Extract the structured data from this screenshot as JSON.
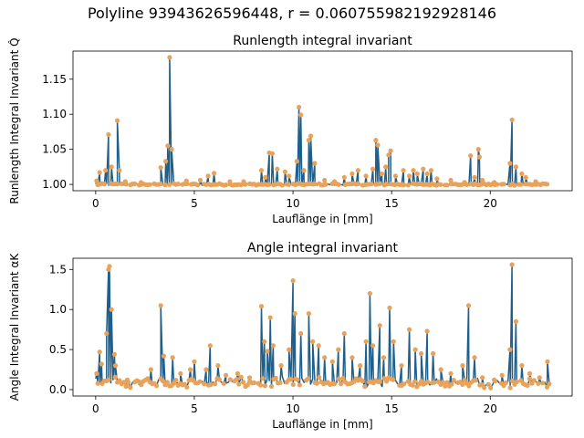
{
  "figure": {
    "suptitle": "Polyline 93943626596448, r = 0.060755982192928146"
  },
  "chart_data": [
    {
      "type": "line",
      "title": "Runlength integral invariant",
      "xlabel": "Lauflänge in [mm]",
      "ylabel": "Runlength Integral Invariant Q̂",
      "xlim": [
        -1.15,
        24.15
      ],
      "ylim": [
        0.991,
        1.19
      ],
      "xticks": [
        0,
        5,
        10,
        15,
        20
      ],
      "yticks": [
        1.0,
        1.05,
        1.1,
        1.15
      ],
      "ytick_labels": [
        "1.00",
        "1.05",
        "1.10",
        "1.15"
      ],
      "line_color": "#1f5f8b",
      "marker_color": "#e8a25a",
      "baseline": 1.0,
      "x_end": 23.0,
      "peaks": [
        {
          "x": 0.05,
          "y": 1.005
        },
        {
          "x": 0.2,
          "y": 1.017
        },
        {
          "x": 0.5,
          "y": 1.02
        },
        {
          "x": 0.65,
          "y": 1.071
        },
        {
          "x": 0.8,
          "y": 1.025
        },
        {
          "x": 1.1,
          "y": 1.091
        },
        {
          "x": 1.2,
          "y": 1.02
        },
        {
          "x": 1.5,
          "y": 1.004
        },
        {
          "x": 2.3,
          "y": 1.003
        },
        {
          "x": 3.3,
          "y": 1.024
        },
        {
          "x": 3.55,
          "y": 1.033
        },
        {
          "x": 3.65,
          "y": 1.055
        },
        {
          "x": 3.75,
          "y": 1.181
        },
        {
          "x": 3.85,
          "y": 1.05
        },
        {
          "x": 4.6,
          "y": 1.005
        },
        {
          "x": 5.3,
          "y": 1.006
        },
        {
          "x": 5.7,
          "y": 1.012
        },
        {
          "x": 6.0,
          "y": 1.016
        },
        {
          "x": 6.8,
          "y": 1.004
        },
        {
          "x": 7.5,
          "y": 1.004
        },
        {
          "x": 8.4,
          "y": 1.02
        },
        {
          "x": 8.6,
          "y": 1.01
        },
        {
          "x": 8.8,
          "y": 1.045
        },
        {
          "x": 8.95,
          "y": 1.044
        },
        {
          "x": 9.2,
          "y": 1.022
        },
        {
          "x": 9.6,
          "y": 1.018
        },
        {
          "x": 9.8,
          "y": 1.012
        },
        {
          "x": 10.2,
          "y": 1.033
        },
        {
          "x": 10.3,
          "y": 1.11
        },
        {
          "x": 10.4,
          "y": 1.099
        },
        {
          "x": 10.55,
          "y": 1.02
        },
        {
          "x": 10.8,
          "y": 1.063
        },
        {
          "x": 10.9,
          "y": 1.069
        },
        {
          "x": 11.1,
          "y": 1.03
        },
        {
          "x": 11.6,
          "y": 1.006
        },
        {
          "x": 12.1,
          "y": 1.004
        },
        {
          "x": 12.6,
          "y": 1.01
        },
        {
          "x": 13.0,
          "y": 1.015
        },
        {
          "x": 13.3,
          "y": 1.02
        },
        {
          "x": 13.7,
          "y": 1.012
        },
        {
          "x": 14.05,
          "y": 1.022
        },
        {
          "x": 14.2,
          "y": 1.063
        },
        {
          "x": 14.3,
          "y": 1.056
        },
        {
          "x": 14.5,
          "y": 1.015
        },
        {
          "x": 14.7,
          "y": 1.025
        },
        {
          "x": 14.85,
          "y": 1.042
        },
        {
          "x": 14.95,
          "y": 1.048
        },
        {
          "x": 15.2,
          "y": 1.012
        },
        {
          "x": 15.6,
          "y": 1.02
        },
        {
          "x": 15.9,
          "y": 1.012
        },
        {
          "x": 16.1,
          "y": 1.02
        },
        {
          "x": 16.3,
          "y": 1.015
        },
        {
          "x": 16.6,
          "y": 1.022
        },
        {
          "x": 16.8,
          "y": 1.015
        },
        {
          "x": 17.0,
          "y": 1.02
        },
        {
          "x": 17.3,
          "y": 1.008
        },
        {
          "x": 18.0,
          "y": 1.006
        },
        {
          "x": 18.7,
          "y": 1.003
        },
        {
          "x": 19.0,
          "y": 1.041
        },
        {
          "x": 19.2,
          "y": 1.01
        },
        {
          "x": 19.4,
          "y": 1.05
        },
        {
          "x": 19.45,
          "y": 1.039
        },
        {
          "x": 19.6,
          "y": 1.006
        },
        {
          "x": 20.2,
          "y": 1.003
        },
        {
          "x": 21.0,
          "y": 1.03
        },
        {
          "x": 21.1,
          "y": 1.092
        },
        {
          "x": 21.3,
          "y": 1.025
        },
        {
          "x": 21.6,
          "y": 1.015
        },
        {
          "x": 21.8,
          "y": 1.01
        },
        {
          "x": 22.3,
          "y": 1.004
        }
      ]
    },
    {
      "type": "line",
      "title": "Angle integral invariant",
      "xlabel": "Lauflänge in [mm]",
      "ylabel": "Angle Integral Invariant αK",
      "xlim": [
        -1.15,
        24.15
      ],
      "ylim": [
        -0.08,
        1.64
      ],
      "xticks": [
        0,
        5,
        10,
        15,
        20
      ],
      "yticks": [
        0.0,
        0.5,
        1.0,
        1.5
      ],
      "ytick_labels": [
        "0.0",
        "0.5",
        "1.0",
        "1.5"
      ],
      "line_color": "#1f5f8b",
      "marker_color": "#e8a25a",
      "baseline": 0.05,
      "x_end": 23.0,
      "peaks": [
        {
          "x": 0.05,
          "y": 0.2
        },
        {
          "x": 0.2,
          "y": 0.47
        },
        {
          "x": 0.3,
          "y": 0.32
        },
        {
          "x": 0.55,
          "y": 0.7
        },
        {
          "x": 0.65,
          "y": 1.5
        },
        {
          "x": 0.7,
          "y": 1.54
        },
        {
          "x": 0.8,
          "y": 1.0
        },
        {
          "x": 0.95,
          "y": 0.44
        },
        {
          "x": 1.0,
          "y": 0.3
        },
        {
          "x": 1.6,
          "y": 0.12
        },
        {
          "x": 2.2,
          "y": 0.1
        },
        {
          "x": 2.8,
          "y": 0.25
        },
        {
          "x": 3.3,
          "y": 1.05
        },
        {
          "x": 3.45,
          "y": 0.42
        },
        {
          "x": 3.9,
          "y": 0.4
        },
        {
          "x": 4.3,
          "y": 0.2
        },
        {
          "x": 4.8,
          "y": 0.25
        },
        {
          "x": 5.0,
          "y": 0.35
        },
        {
          "x": 5.6,
          "y": 0.25
        },
        {
          "x": 5.8,
          "y": 0.55
        },
        {
          "x": 6.2,
          "y": 0.3
        },
        {
          "x": 6.6,
          "y": 0.18
        },
        {
          "x": 7.2,
          "y": 0.2
        },
        {
          "x": 7.8,
          "y": 0.15
        },
        {
          "x": 8.4,
          "y": 1.04
        },
        {
          "x": 8.55,
          "y": 0.6
        },
        {
          "x": 8.7,
          "y": 0.48
        },
        {
          "x": 8.85,
          "y": 0.9
        },
        {
          "x": 9.0,
          "y": 0.55
        },
        {
          "x": 9.4,
          "y": 0.3
        },
        {
          "x": 9.8,
          "y": 0.5
        },
        {
          "x": 10.0,
          "y": 1.36
        },
        {
          "x": 10.1,
          "y": 0.95
        },
        {
          "x": 10.4,
          "y": 0.7
        },
        {
          "x": 10.8,
          "y": 0.95
        },
        {
          "x": 11.0,
          "y": 0.6
        },
        {
          "x": 11.3,
          "y": 0.55
        },
        {
          "x": 11.6,
          "y": 0.4
        },
        {
          "x": 12.0,
          "y": 0.35
        },
        {
          "x": 12.3,
          "y": 0.5
        },
        {
          "x": 12.6,
          "y": 0.7
        },
        {
          "x": 13.0,
          "y": 0.4
        },
        {
          "x": 13.4,
          "y": 0.3
        },
        {
          "x": 13.7,
          "y": 0.6
        },
        {
          "x": 13.9,
          "y": 1.2
        },
        {
          "x": 14.05,
          "y": 0.55
        },
        {
          "x": 14.4,
          "y": 0.8
        },
        {
          "x": 14.6,
          "y": 0.4
        },
        {
          "x": 14.9,
          "y": 1.02
        },
        {
          "x": 15.1,
          "y": 0.6
        },
        {
          "x": 15.5,
          "y": 0.3
        },
        {
          "x": 15.9,
          "y": 0.75
        },
        {
          "x": 16.2,
          "y": 0.5
        },
        {
          "x": 16.5,
          "y": 0.45
        },
        {
          "x": 16.8,
          "y": 0.73
        },
        {
          "x": 17.1,
          "y": 0.45
        },
        {
          "x": 17.5,
          "y": 0.25
        },
        {
          "x": 18.0,
          "y": 0.2
        },
        {
          "x": 18.6,
          "y": 0.3
        },
        {
          "x": 18.9,
          "y": 1.05
        },
        {
          "x": 19.2,
          "y": 0.4
        },
        {
          "x": 19.6,
          "y": 0.15
        },
        {
          "x": 20.2,
          "y": 0.12
        },
        {
          "x": 20.6,
          "y": 0.18
        },
        {
          "x": 21.0,
          "y": 0.5
        },
        {
          "x": 21.1,
          "y": 1.56
        },
        {
          "x": 21.3,
          "y": 0.85
        },
        {
          "x": 21.6,
          "y": 0.3
        },
        {
          "x": 22.0,
          "y": 0.2
        },
        {
          "x": 22.5,
          "y": 0.15
        },
        {
          "x": 22.9,
          "y": 0.35
        }
      ]
    }
  ]
}
